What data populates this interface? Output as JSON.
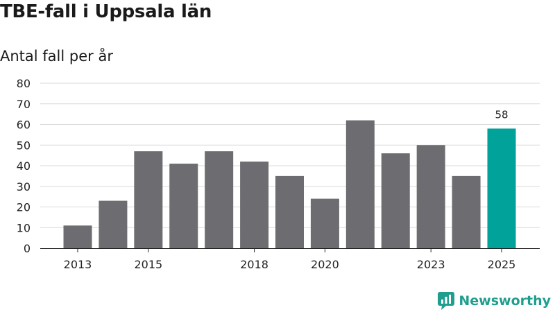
{
  "title": "TBE-fall i Uppsala län",
  "subtitle": "Antal fall per år",
  "brand": {
    "name": "Newsworthy",
    "icon": "newsworthy-logo-icon"
  },
  "colors": {
    "bar": "#6d6c71",
    "highlight": "#00a29a",
    "grid": "#d9d9d9",
    "axis": "#222222",
    "brand": "#1f9e8f"
  },
  "chart_data": {
    "type": "bar",
    "title": "TBE-fall i Uppsala län",
    "subtitle": "Antal fall per år",
    "xlabel": "",
    "ylabel": "",
    "categories": [
      "2013",
      "2014",
      "2015",
      "2016",
      "2017",
      "2018",
      "2019",
      "2020",
      "2021",
      "2022",
      "2023",
      "2024",
      "2025"
    ],
    "values": [
      11,
      23,
      47,
      41,
      47,
      42,
      35,
      24,
      62,
      46,
      50,
      35,
      58
    ],
    "xticks": [
      "2013",
      "2015",
      "2018",
      "2020",
      "2023",
      "2025"
    ],
    "yticks": [
      0,
      10,
      20,
      30,
      40,
      50,
      60,
      70,
      80
    ],
    "ylim": [
      0,
      80
    ],
    "grid": true,
    "highlight_category": "2025",
    "annotations": [
      {
        "category": "2025",
        "text": "58"
      }
    ]
  }
}
